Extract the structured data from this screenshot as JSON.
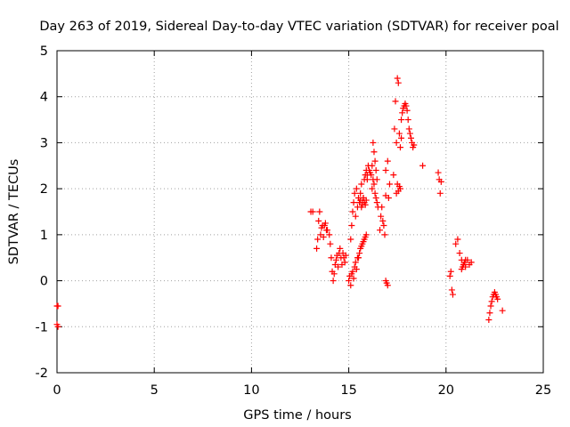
{
  "chart_data": {
    "type": "scatter",
    "title": "Day 263 of 2019, Sidereal Day-to-day VTEC variation (SDTVAR) for receiver poal",
    "xlabel": "GPS time / hours",
    "ylabel": "SDTVAR / TECUs",
    "xlim": [
      0,
      25
    ],
    "ylim": [
      -2,
      5
    ],
    "xticks": [
      0,
      5,
      10,
      15,
      20,
      25
    ],
    "yticks": [
      -2,
      -1,
      0,
      1,
      2,
      3,
      4,
      5
    ],
    "grid": true,
    "marker": "+",
    "marker_color": "#ff0000",
    "series": [
      {
        "name": "SDTVAR",
        "x": [
          0.0,
          0.05,
          0.0,
          0.05,
          13.05,
          13.15,
          13.35,
          13.4,
          13.45,
          13.5,
          13.55,
          13.6,
          13.65,
          13.7,
          13.75,
          13.8,
          13.85,
          13.9,
          14.0,
          14.05,
          14.1,
          14.15,
          14.2,
          14.25,
          14.3,
          14.35,
          14.4,
          14.45,
          14.5,
          14.55,
          14.6,
          14.65,
          14.7,
          14.75,
          14.8,
          14.85,
          15.0,
          15.05,
          15.1,
          15.15,
          15.2,
          15.25,
          15.3,
          15.35,
          15.4,
          15.45,
          15.1,
          15.15,
          15.2,
          15.25,
          15.3,
          15.35,
          15.4,
          15.45,
          15.5,
          15.55,
          15.6,
          15.65,
          15.7,
          15.75,
          15.8,
          15.85,
          15.9,
          15.95,
          15.5,
          15.55,
          15.6,
          15.65,
          15.7,
          15.75,
          15.8,
          15.85,
          15.9,
          15.95,
          16.0,
          16.05,
          16.1,
          16.15,
          16.2,
          16.25,
          16.3,
          16.35,
          16.4,
          16.45,
          15.55,
          15.6,
          15.65,
          15.7,
          15.75,
          15.8,
          15.85,
          15.9,
          16.2,
          16.25,
          16.3,
          16.35,
          16.4,
          16.45,
          16.5,
          16.6,
          16.65,
          16.7,
          16.75,
          16.8,
          16.85,
          16.9,
          16.9,
          17.0,
          17.05,
          17.1,
          16.9,
          16.95,
          17.0,
          17.3,
          17.35,
          17.4,
          17.45,
          17.5,
          17.55,
          17.6,
          17.65,
          17.7,
          17.45,
          17.5,
          17.55,
          17.6,
          17.65,
          17.7,
          17.75,
          17.8,
          17.85,
          17.9,
          17.95,
          18.0,
          18.05,
          18.1,
          18.15,
          18.2,
          18.25,
          18.3,
          18.35,
          18.8,
          19.6,
          19.65,
          19.7,
          19.75,
          20.2,
          20.25,
          20.3,
          20.35,
          20.5,
          20.6,
          20.7,
          20.8,
          20.9,
          21.0,
          21.1,
          21.2,
          21.3,
          20.8,
          20.85,
          20.9,
          20.95,
          21.0,
          22.2,
          22.25,
          22.3,
          22.35,
          22.4,
          22.45,
          22.5,
          22.55,
          22.6,
          22.65,
          22.9
        ],
        "y": [
          -0.55,
          -0.55,
          -0.95,
          -1.0,
          1.5,
          1.5,
          0.7,
          0.9,
          1.3,
          1.5,
          1.0,
          1.15,
          1.2,
          0.95,
          1.2,
          1.25,
          1.1,
          1.1,
          1.0,
          0.8,
          0.5,
          0.2,
          0.0,
          0.15,
          0.35,
          0.45,
          0.55,
          0.3,
          0.6,
          0.7,
          0.5,
          0.35,
          0.6,
          0.5,
          0.4,
          0.55,
          0.0,
          0.1,
          -0.1,
          0.15,
          0.2,
          0.05,
          0.3,
          0.4,
          0.25,
          0.5,
          0.9,
          1.2,
          1.5,
          1.7,
          1.9,
          1.4,
          2.0,
          1.6,
          1.8,
          1.7,
          1.9,
          2.1,
          1.7,
          1.8,
          2.2,
          2.3,
          2.4,
          2.3,
          0.5,
          0.6,
          0.7,
          0.75,
          0.8,
          0.85,
          0.9,
          0.95,
          1.0,
          2.2,
          2.5,
          2.4,
          2.35,
          2.3,
          2.5,
          3.0,
          2.8,
          2.6,
          2.4,
          2.2,
          1.7,
          1.75,
          1.6,
          1.65,
          1.8,
          1.7,
          1.65,
          1.75,
          2.0,
          2.2,
          2.1,
          1.9,
          1.8,
          1.7,
          1.6,
          1.1,
          1.4,
          1.6,
          1.3,
          1.2,
          1.0,
          1.85,
          2.4,
          2.6,
          1.8,
          2.1,
          0.0,
          -0.05,
          -0.1,
          2.3,
          3.3,
          3.9,
          3.0,
          4.4,
          4.3,
          3.2,
          2.9,
          3.1,
          1.9,
          2.1,
          1.95,
          2.05,
          2.0,
          3.5,
          3.65,
          3.75,
          3.8,
          3.85,
          3.8,
          3.7,
          3.5,
          3.3,
          3.2,
          3.1,
          3.0,
          2.9,
          2.95,
          2.5,
          2.35,
          2.2,
          1.9,
          2.15,
          0.1,
          0.2,
          -0.2,
          -0.3,
          0.8,
          0.9,
          0.6,
          0.45,
          0.35,
          0.3,
          0.45,
          0.35,
          0.4,
          0.25,
          0.3,
          0.35,
          0.4,
          0.45,
          -0.85,
          -0.7,
          -0.55,
          -0.45,
          -0.35,
          -0.3,
          -0.25,
          -0.3,
          -0.35,
          -0.4,
          -0.65
        ]
      }
    ]
  }
}
